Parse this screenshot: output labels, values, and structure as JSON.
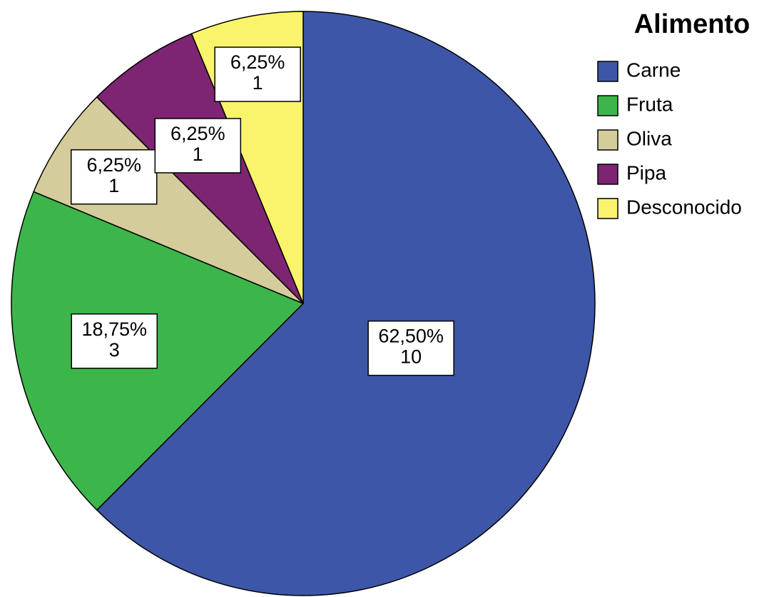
{
  "chart_data": {
    "type": "pie",
    "legend_title": "Alimento",
    "categories": [
      "Carne",
      "Fruta",
      "Oliva",
      "Pipa",
      "Desconocido"
    ],
    "values": [
      62.5,
      18.75,
      6.25,
      6.25,
      6.25
    ],
    "value_labels": [
      "62,50%",
      "18,75%",
      "6,25%",
      "6,25%",
      "6,25%"
    ],
    "counts": [
      10,
      3,
      1,
      1,
      1
    ],
    "colors": [
      "#3d56a8",
      "#3cb64a",
      "#d4cc9a",
      "#7d2472",
      "#f9f46c"
    ],
    "legend": "top-right"
  }
}
